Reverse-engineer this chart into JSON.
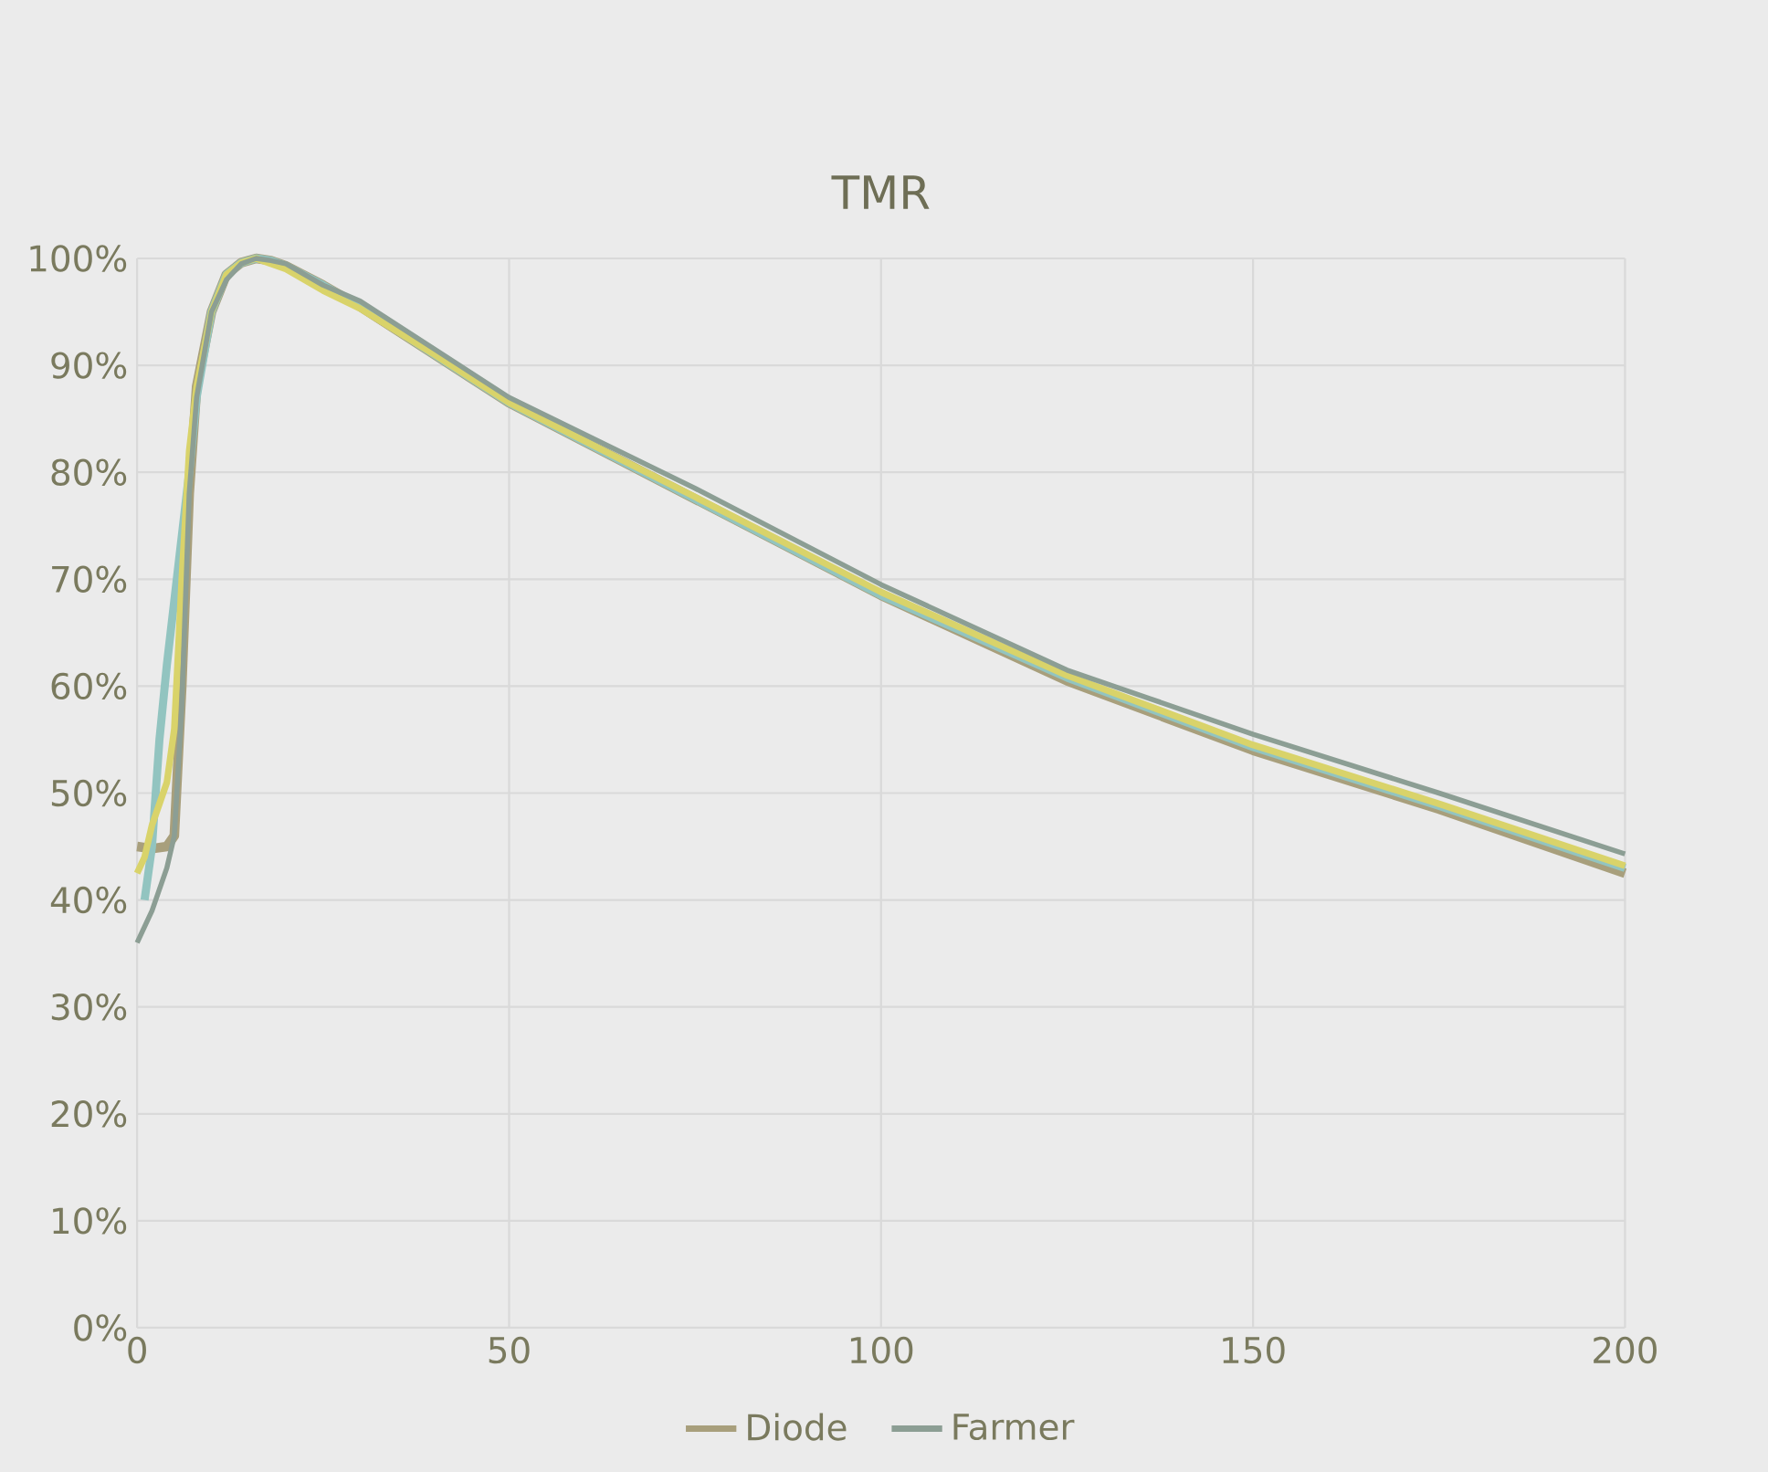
{
  "chart_data": {
    "type": "line",
    "title": "TMR",
    "xlim": [
      0,
      200
    ],
    "xticks": [
      0,
      50,
      100,
      150,
      200
    ],
    "ylim": [
      0,
      100
    ],
    "yticks": [
      {
        "value": 0,
        "label": "0%"
      },
      {
        "value": 10,
        "label": "10%"
      },
      {
        "value": 20,
        "label": "20%"
      },
      {
        "value": 30,
        "label": "30%"
      },
      {
        "value": 40,
        "label": "40%"
      },
      {
        "value": 50,
        "label": "50%"
      },
      {
        "value": 60,
        "label": "60%"
      },
      {
        "value": 70,
        "label": "70%"
      },
      {
        "value": 80,
        "label": "80%"
      },
      {
        "value": 90,
        "label": "90%"
      },
      {
        "value": 100,
        "label": "100%"
      }
    ],
    "grid": true,
    "legend": "bottom",
    "marker": "none",
    "line_style": "solid",
    "series": [
      {
        "name": "Diode",
        "color": "#a89f7c",
        "x": [
          0,
          2,
          4,
          5,
          6,
          7,
          8,
          10,
          12,
          14,
          16,
          18,
          20,
          25,
          30,
          40,
          50,
          75,
          100,
          125,
          150,
          175,
          200
        ],
        "values": [
          45,
          44.8,
          45,
          46,
          60,
          78,
          88,
          95,
          98.5,
          99.6,
          100,
          99.8,
          99.3,
          97.5,
          95.5,
          91,
          86.5,
          77.5,
          68.5,
          60.5,
          54,
          48.5,
          42.5
        ]
      },
      {
        "color": "#92c4c0",
        "x": [
          1,
          2,
          3,
          4,
          5,
          6,
          7,
          8,
          10,
          12,
          14,
          16,
          18,
          20,
          25,
          30,
          40,
          50,
          75,
          100,
          125,
          150,
          175,
          200
        ],
        "values": [
          40,
          45,
          55,
          62,
          68,
          74,
          80,
          87,
          95,
          98.5,
          99.6,
          100,
          99.8,
          99.3,
          97.5,
          95.5,
          91,
          86.5,
          77.5,
          68.5,
          60.8,
          54.3,
          48.8,
          43
        ]
      },
      {
        "color": "#d9d36a",
        "x": [
          0,
          1,
          2,
          3,
          4,
          5,
          6,
          7,
          8,
          10,
          12,
          14,
          16,
          18,
          20,
          25,
          30,
          40,
          50,
          75,
          100,
          125,
          150,
          175,
          200
        ],
        "values": [
          42.5,
          44,
          47,
          49,
          51,
          56,
          70,
          82,
          88,
          95,
          98.5,
          99.6,
          100,
          99.5,
          99,
          97,
          95.3,
          91,
          86.5,
          77.7,
          68.8,
          61,
          54.5,
          49,
          43.2
        ]
      },
      {
        "name": "Farmer",
        "color": "#8c9e94",
        "x": [
          0,
          1,
          2,
          3,
          4,
          5,
          6,
          7,
          8,
          10,
          12,
          14,
          16,
          18,
          20,
          25,
          30,
          40,
          50,
          75,
          100,
          125,
          150,
          175,
          200
        ],
        "values": [
          36,
          37.5,
          39,
          41,
          43,
          46,
          58,
          78,
          87,
          95,
          98,
          99.5,
          100,
          99.8,
          99.5,
          97.5,
          96,
          91.5,
          87,
          78.5,
          69.5,
          61.5,
          55.5,
          50,
          44.3
        ]
      }
    ]
  }
}
